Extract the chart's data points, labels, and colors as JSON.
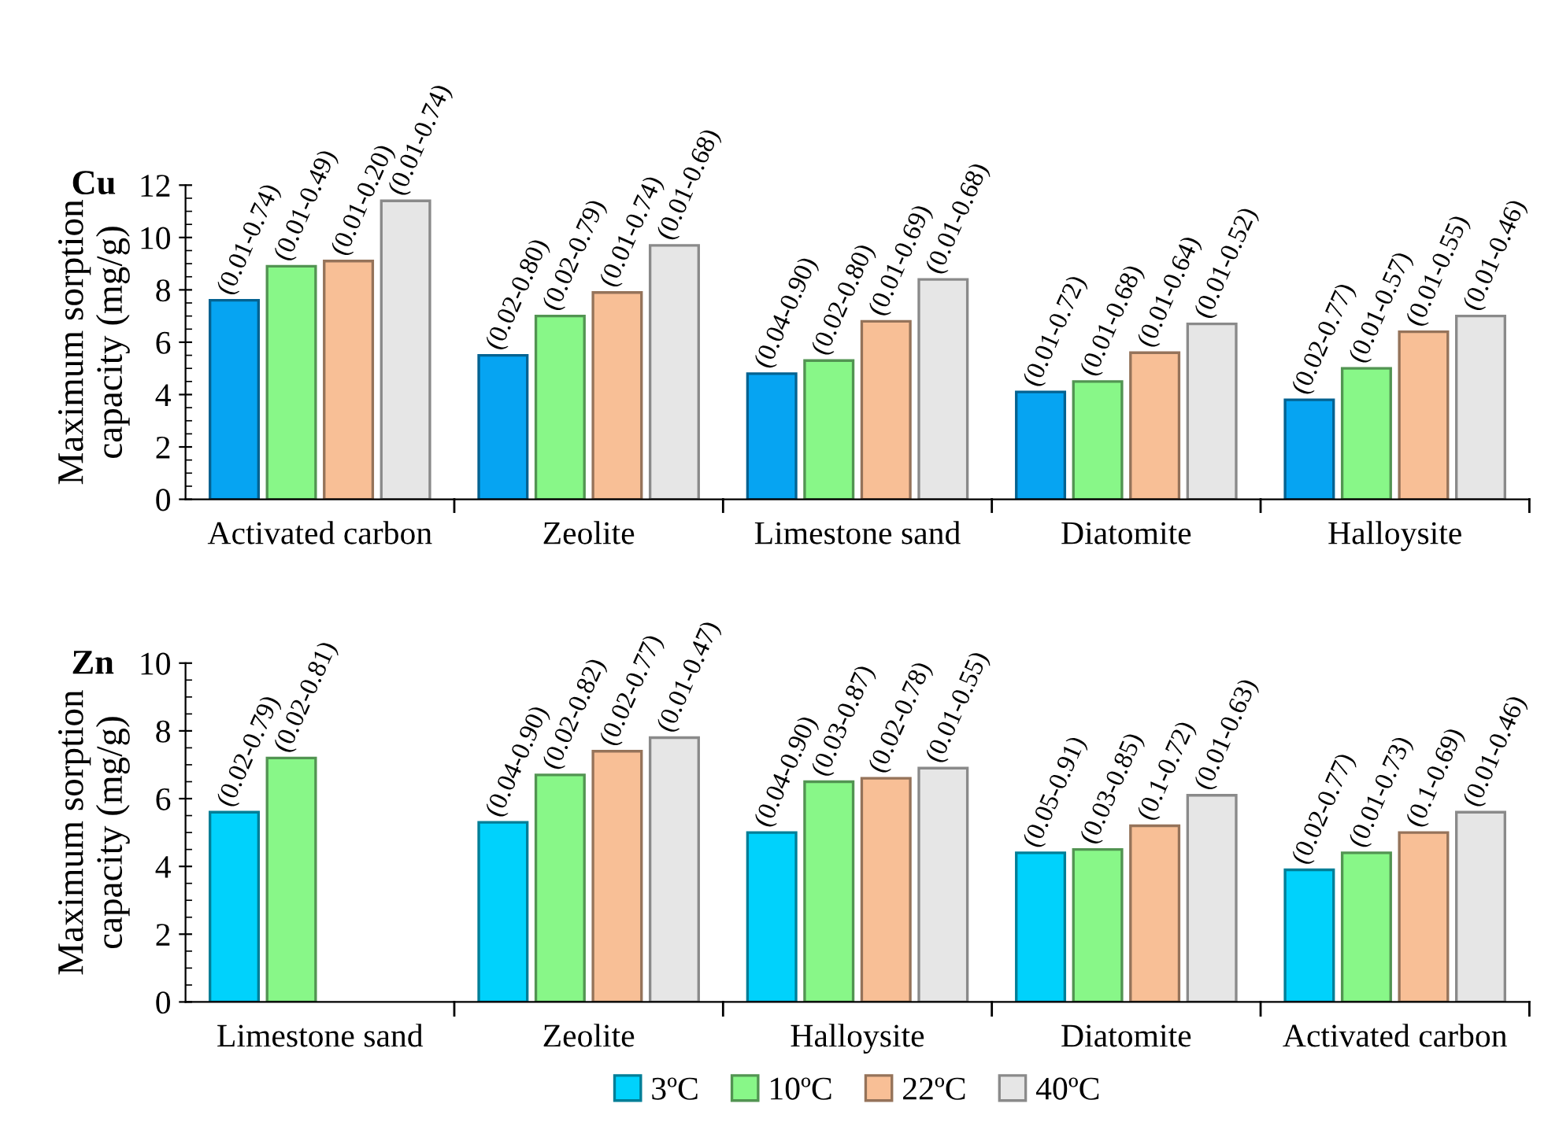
{
  "chart_data": [
    {
      "type": "bar",
      "title": "Cu",
      "ylabel": "Maximum sorption\ncapacity (mg/g)",
      "categories": [
        "Activated carbon",
        "Zeolite",
        "Limestone sand",
        "Diatomite",
        "Halloysite"
      ],
      "ylim": [
        0,
        12
      ],
      "yticks": [
        0,
        2,
        4,
        6,
        8,
        10,
        12
      ],
      "legend": false,
      "series": [
        {
          "color": "#06a4f2",
          "values": [
            7.6,
            5.5,
            4.8,
            4.1,
            3.8
          ],
          "value_labels": [
            "(0.01-0.74)",
            "(0.02-0.80)",
            "(0.04-0.90)",
            "(0.01-0.72)",
            "(0.02-0.77)"
          ]
        },
        {
          "color": "#88f788",
          "values": [
            8.9,
            7.0,
            5.3,
            4.5,
            5.0
          ],
          "value_labels": [
            "(0.01-0.49)",
            "(0.02-0.79)",
            "(0.02-0.80)",
            "(0.01-0.68)",
            "(0.01-0.57)"
          ]
        },
        {
          "color": "#f8bf96",
          "values": [
            9.1,
            7.9,
            6.8,
            5.6,
            6.4
          ],
          "value_labels": [
            "(0.01-0.20)",
            "(0.01-0.74)",
            "(0.01-0.69)",
            "(0.01-0.64)",
            "(0.01-0.55)"
          ]
        },
        {
          "color": "#e6e6e6",
          "values": [
            11.4,
            9.7,
            8.4,
            6.7,
            7.0
          ],
          "value_labels": [
            "(0.01-0.74)",
            "(0.01-0.68)",
            "(0.01-0.68)",
            "(0.01-0.52)",
            "(0.01-0.46)"
          ]
        }
      ]
    },
    {
      "type": "bar",
      "title": "Zn",
      "ylabel": "Maximum sorption\ncapacity (mg/g)",
      "categories": [
        "Limestone sand",
        "Zeolite",
        "Halloysite",
        "Diatomite",
        "Activated carbon"
      ],
      "ylim": [
        0,
        10
      ],
      "yticks": [
        0,
        2,
        4,
        6,
        8,
        10
      ],
      "legend": "bottom",
      "series": [
        {
          "name": "3ºC",
          "color": "#00d2fc",
          "values": [
            5.6,
            5.3,
            5.0,
            4.4,
            3.9
          ],
          "value_labels": [
            "(0.02-0.79)",
            "(0.04-0.90)",
            "(0.04-0.90)",
            "(0.05-0.91)",
            "(0.02-0.77)"
          ]
        },
        {
          "name": "10ºC",
          "color": "#88f788",
          "values": [
            7.2,
            6.7,
            6.5,
            4.5,
            4.4
          ],
          "value_labels": [
            "(0.02-0.81)",
            "(0.02-0.82)",
            "(0.03-0.87)",
            "(0.03-0.85)",
            "(0.01-0.73)"
          ]
        },
        {
          "name": "22ºC",
          "color": "#f8bf96",
          "values": [
            null,
            7.4,
            6.6,
            5.2,
            5.0
          ],
          "value_labels": [
            null,
            "(0.02-0.77)",
            "(0.02-0.78)",
            "(0.1-0.72)",
            "(0.1-0.69)"
          ]
        },
        {
          "name": "40ºC",
          "color": "#e6e6e6",
          "values": [
            null,
            7.8,
            6.9,
            6.1,
            5.6
          ],
          "value_labels": [
            null,
            "(0.01-0.47)",
            "(0.01-0.55)",
            "(0.01-0.63)",
            "(0.01-0.46)"
          ]
        }
      ]
    }
  ]
}
